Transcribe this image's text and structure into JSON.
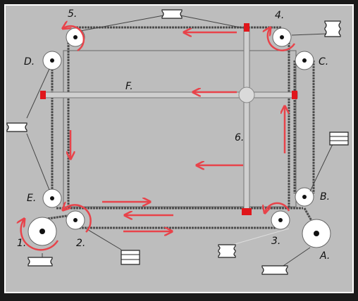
{
  "labels": {
    "pulley_A": "A.",
    "pulley_B": "B.",
    "pulley_C": "C.",
    "pulley_D": "D.",
    "pulley_E": "E.",
    "pulley_1": "1.",
    "pulley_2": "2.",
    "pulley_3": "3.",
    "pulley_4": "4.",
    "pulley_5": "5.",
    "gantry_bar": "F.",
    "vertical_bar": "6."
  },
  "colors": {
    "background": "#bdbdbd",
    "frame": "#1a1a1a",
    "arrow": "#e8434a",
    "belt": "#555555",
    "clamp": "#e0161b"
  },
  "icons": {
    "pulley": "pulley-wheel-icon",
    "bearing_side_view": "bearing-side-view-icon",
    "bearing_stack_view": "bearing-stack-icon",
    "rotation": "rotation-arrow-icon",
    "direction": "direction-arrow-icon"
  }
}
